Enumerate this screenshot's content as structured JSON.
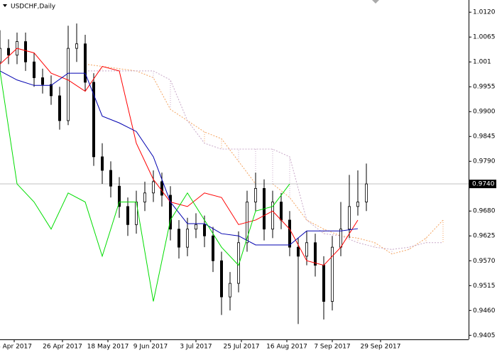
{
  "chart_data": {
    "type": "candlestick",
    "title": "USDCHF,Daily",
    "xlim": [
      0,
      165
    ],
    "ylim": [
      0.9396,
      1.0147
    ],
    "yticks": [
      {
        "value": 1.012,
        "label": "1.0120"
      },
      1.0065,
      1.001,
      0.9955,
      {
        "value": 0.99,
        "label": "0.9900"
      },
      0.9845,
      {
        "value": 0.979,
        "label": "0.9790"
      },
      {
        "value": 0.968,
        "label": "0.9680"
      },
      0.9625,
      {
        "value": 0.957,
        "label": "0.9570"
      },
      0.9515,
      {
        "value": 0.946,
        "label": "0.9460"
      },
      0.9405
    ],
    "xticks": [
      {
        "value": 5,
        "label": "4 Apr 2017"
      },
      {
        "value": 22,
        "label": "26 Apr 2017"
      },
      {
        "value": 38,
        "label": "18 May 2017"
      },
      {
        "value": 53,
        "label": "9 Jun 2017"
      },
      {
        "value": 69,
        "label": "3 Jul 2017"
      },
      {
        "value": 85,
        "label": "25 Jul 2017"
      },
      {
        "value": 101,
        "label": "16 Aug 2017"
      },
      {
        "value": 117,
        "label": "7 Sep 2017"
      },
      {
        "value": 134,
        "label": "29 Sep 2017"
      }
    ],
    "price_label": {
      "value": 0.974,
      "label": "0.9740"
    },
    "candles": {
      "color": "#000000",
      "x": [
        0,
        3,
        6,
        9,
        12,
        15,
        18,
        21,
        24,
        27,
        30,
        33,
        36,
        39,
        42,
        45,
        48,
        51,
        54,
        57,
        60,
        63,
        66,
        69,
        72,
        75,
        78,
        81,
        84,
        87,
        90,
        93,
        96,
        99,
        102,
        105,
        108,
        111,
        114,
        117,
        120,
        123,
        126,
        129
      ],
      "open": [
        1.001,
        1.004,
        1.0025,
        1.0055,
        1.001,
        0.9975,
        0.996,
        0.9935,
        0.988,
        1.004,
        1.005,
        0.9965,
        0.98,
        0.977,
        0.9735,
        0.969,
        0.965,
        0.97,
        0.972,
        0.9745,
        0.9715,
        0.964,
        0.96,
        0.964,
        0.965,
        0.9625,
        0.957,
        0.949,
        0.952,
        0.961,
        0.97,
        0.973,
        0.964,
        0.97,
        0.966,
        0.96,
        0.958,
        0.961,
        0.956,
        0.948,
        0.96,
        0.964,
        0.969,
        0.97
      ],
      "high": [
        1.008,
        1.006,
        1.0075,
        1.0075,
        1.003,
        0.9995,
        0.998,
        0.9955,
        1.009,
        1.0095,
        1.007,
        0.9985,
        0.983,
        0.979,
        0.9755,
        0.971,
        0.9725,
        0.9745,
        0.977,
        0.9765,
        0.9735,
        0.966,
        0.9665,
        0.9675,
        0.967,
        0.9645,
        0.959,
        0.9545,
        0.9635,
        0.9725,
        0.9765,
        0.975,
        0.9725,
        0.972,
        0.968,
        0.962,
        0.9635,
        0.963,
        0.958,
        0.9625,
        0.97,
        0.976,
        0.977,
        0.9785
      ],
      "low": [
        0.999,
        1.0005,
        1.0005,
        0.999,
        0.9955,
        0.994,
        0.9915,
        0.986,
        0.987,
        1.001,
        0.9945,
        0.978,
        0.974,
        0.971,
        0.9665,
        0.9625,
        0.963,
        0.968,
        0.97,
        0.969,
        0.9615,
        0.9575,
        0.958,
        0.962,
        0.96,
        0.9545,
        0.945,
        0.946,
        0.95,
        0.959,
        0.968,
        0.9615,
        0.962,
        0.964,
        0.958,
        0.943,
        0.956,
        0.9535,
        0.944,
        0.946,
        0.958,
        0.962,
        0.967,
        0.968
      ],
      "close": [
        1.004,
        1.0025,
        1.0055,
        1.001,
        0.9975,
        0.996,
        0.9935,
        0.988,
        1.004,
        1.005,
        0.9965,
        0.98,
        0.977,
        0.9735,
        0.969,
        0.965,
        0.97,
        0.972,
        0.9745,
        0.9715,
        0.964,
        0.96,
        0.964,
        0.965,
        0.9625,
        0.957,
        0.949,
        0.952,
        0.961,
        0.97,
        0.973,
        0.964,
        0.97,
        0.966,
        0.96,
        0.958,
        0.961,
        0.956,
        0.948,
        0.96,
        0.964,
        0.969,
        0.97,
        0.974
      ]
    },
    "lines": [
      {
        "color": "#ff0000",
        "x": [
          0,
          6,
          12,
          18,
          24,
          30,
          36,
          42,
          48,
          54,
          60,
          66,
          72,
          78,
          84,
          90,
          96,
          102,
          108,
          114,
          120,
          126
        ],
        "values": [
          1.0005,
          1.004,
          1.003,
          0.9985,
          0.997,
          0.9945,
          1.0,
          0.999,
          0.983,
          0.975,
          0.97,
          0.969,
          0.972,
          0.971,
          0.965,
          0.966,
          0.968,
          0.964,
          0.957,
          0.956,
          0.96,
          0.966
        ]
      },
      {
        "color": "#0000b0",
        "x": [
          0,
          6,
          12,
          18,
          24,
          30,
          36,
          42,
          48,
          54,
          60,
          66,
          72,
          78,
          84,
          90,
          96,
          102,
          108,
          114,
          120,
          126
        ],
        "values": [
          0.999,
          0.997,
          0.9958,
          0.9958,
          0.9985,
          0.9985,
          0.989,
          0.9875,
          0.9856,
          0.98,
          0.97,
          0.9652,
          0.9652,
          0.963,
          0.9625,
          0.9605,
          0.9605,
          0.9605,
          0.9636,
          0.9636,
          0.9636,
          0.9641
        ]
      },
      {
        "color": "#00dd00",
        "x": [
          0,
          6,
          12,
          18,
          24,
          30,
          36,
          42,
          48,
          54,
          60,
          66,
          72,
          78,
          84,
          90,
          96,
          102
        ],
        "values": [
          0.999,
          0.974,
          0.97,
          0.964,
          0.972,
          0.97,
          0.958,
          0.97,
          0.97,
          0.948,
          0.966,
          0.972,
          0.966,
          0.96,
          0.956,
          0.968,
          0.969,
          0.974
        ]
      }
    ],
    "cloud": {
      "x": [
        30,
        36,
        42,
        48,
        54,
        60,
        66,
        72,
        78,
        84,
        90,
        96,
        102,
        108,
        114,
        120,
        126,
        132,
        138,
        144,
        150,
        156
      ],
      "span_a": {
        "color": "#f4a460",
        "values": [
          1.0005,
          1.0,
          0.9995,
          0.999,
          0.9975,
          0.9905,
          0.988,
          0.9855,
          0.984,
          0.979,
          0.974,
          0.974,
          0.971,
          0.966,
          0.964,
          0.9625,
          0.962,
          0.961,
          0.9585,
          0.9595,
          0.962,
          0.966
        ]
      },
      "span_b": {
        "color": "#c8a8c8",
        "values": [
          0.999,
          0.999,
          0.999,
          0.999,
          0.999,
          0.997,
          0.988,
          0.983,
          0.9817,
          0.9817,
          0.9817,
          0.9817,
          0.98,
          0.966,
          0.963,
          0.9625,
          0.961,
          0.96,
          0.9595,
          0.96,
          0.961,
          0.961
        ]
      }
    }
  }
}
